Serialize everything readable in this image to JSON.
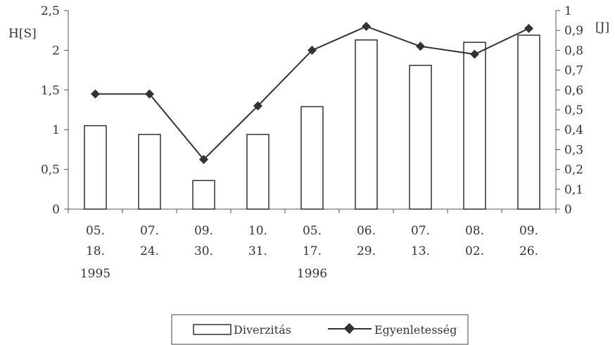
{
  "chart_data": {
    "type": "bar",
    "categories": [
      [
        "05.",
        "18."
      ],
      [
        "07.",
        "24."
      ],
      [
        "09.",
        "30."
      ],
      [
        "10.",
        "31."
      ],
      [
        "05.",
        "17."
      ],
      [
        "06.",
        "29."
      ],
      [
        "07.",
        "13."
      ],
      [
        "08.",
        "02."
      ],
      [
        "09.",
        "26."
      ]
    ],
    "year_labels": [
      {
        "label": "1995",
        "category_index": 0
      },
      {
        "label": "1996",
        "category_index": 4
      }
    ],
    "series": [
      {
        "name": "Diverzitás",
        "type": "bar",
        "axis": "left",
        "values": [
          1.05,
          0.94,
          0.36,
          0.94,
          1.29,
          2.13,
          1.81,
          2.1,
          2.19
        ]
      },
      {
        "name": "Egyenletesség",
        "type": "line",
        "axis": "right",
        "values": [
          0.58,
          0.58,
          0.25,
          0.52,
          0.8,
          0.92,
          0.82,
          0.78,
          0.91
        ]
      }
    ],
    "ylabel": "H[S]",
    "y2label": "[J]",
    "ylim": [
      0,
      2.5
    ],
    "y2lim": [
      0,
      1
    ],
    "yticks": [
      "0",
      "0,5",
      "1",
      "1,5",
      "2",
      "2,5"
    ],
    "y2ticks": [
      "0",
      "0,1",
      "0,2",
      "0,3",
      "0,4",
      "0,5",
      "0,6",
      "0,7",
      "0,8",
      "0,9",
      "1"
    ],
    "grid": false,
    "legend_position": "bottom",
    "colors": {
      "bar_fill": "#ffffff",
      "bar_stroke": "#222222",
      "line": "#333333"
    }
  }
}
